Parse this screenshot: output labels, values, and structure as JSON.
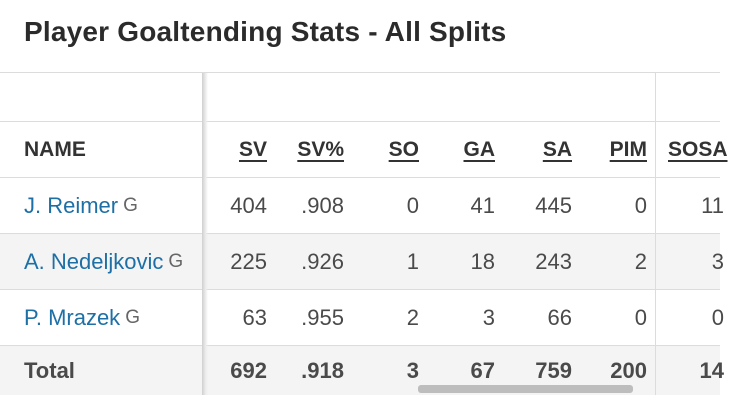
{
  "title": "Player Goaltending Stats - All Splits",
  "columns": {
    "name": "NAME",
    "sv": "SV",
    "sv_pct": "SV%",
    "so": "SO",
    "ga": "GA",
    "sa": "SA",
    "pim": "PIM",
    "sosa": "SOSA"
  },
  "rows": [
    {
      "name": "J. Reimer",
      "pos": "G",
      "sv": "404",
      "sv_pct": ".908",
      "so": "0",
      "ga": "41",
      "sa": "445",
      "pim": "0",
      "sosa": "11"
    },
    {
      "name": "A. Nedeljkovic",
      "pos": "G",
      "sv": "225",
      "sv_pct": ".926",
      "so": "1",
      "ga": "18",
      "sa": "243",
      "pim": "2",
      "sosa": "3"
    },
    {
      "name": "P. Mrazek",
      "pos": "G",
      "sv": "63",
      "sv_pct": ".955",
      "so": "2",
      "ga": "3",
      "sa": "66",
      "pim": "0",
      "sosa": "0"
    }
  ],
  "total": {
    "label": "Total",
    "sv": "692",
    "sv_pct": ".918",
    "so": "3",
    "ga": "67",
    "sa": "759",
    "pim": "200",
    "sosa": "14"
  },
  "colors": {
    "link": "#1d6fa5",
    "stripe": "#f4f4f4",
    "border": "#dcdcdc"
  }
}
